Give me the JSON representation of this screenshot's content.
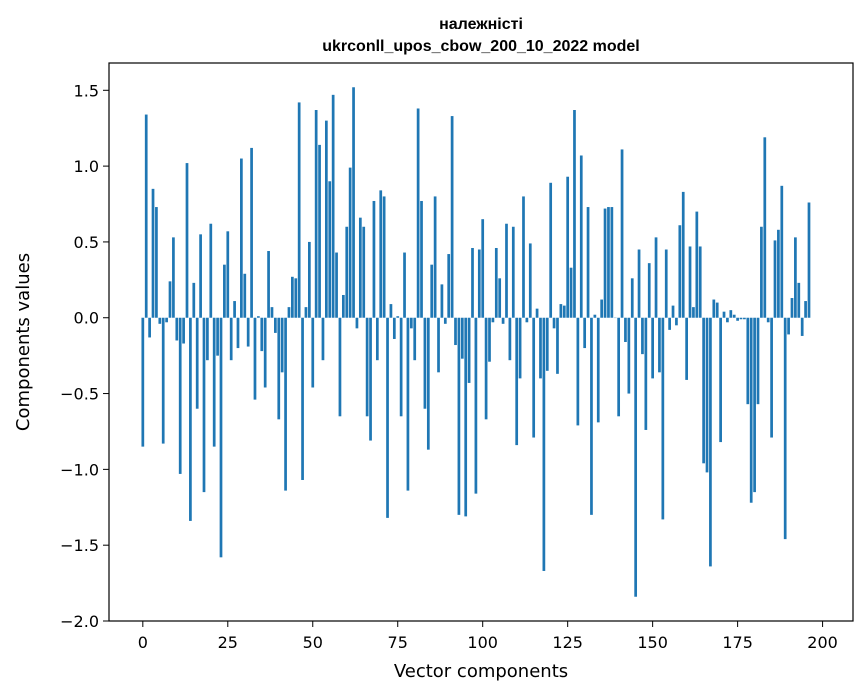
{
  "chart_data": {
    "type": "bar",
    "title": "належністі",
    "subtitle": "ukrconll_upos_cbow_200_10_2022 model",
    "xlabel": "Vector components",
    "ylabel": "Components values",
    "xlim": [
      -9.95,
      208.95
    ],
    "ylim": [
      -2.0,
      1.68
    ],
    "xticks": [
      0,
      25,
      50,
      75,
      100,
      125,
      150,
      175,
      200
    ],
    "yticks": [
      -2.0,
      -1.5,
      -1.0,
      -0.5,
      0.0,
      0.5,
      1.0,
      1.5
    ],
    "ytick_labels": [
      "−2.0",
      "−1.5",
      "−1.0",
      "−0.5",
      "0.0",
      "0.5",
      "1.0",
      "1.5"
    ],
    "grid": false,
    "bar_color": "#1f77b4",
    "values": [
      -0.85,
      1.34,
      -0.13,
      0.85,
      0.73,
      -0.04,
      -0.83,
      -0.03,
      0.24,
      0.53,
      -0.15,
      -1.03,
      -0.17,
      1.02,
      -1.34,
      0.23,
      -0.6,
      0.55,
      -1.15,
      -0.28,
      0.62,
      -0.85,
      -0.25,
      -1.58,
      0.35,
      0.57,
      -0.28,
      0.11,
      -0.2,
      1.05,
      0.29,
      -0.19,
      1.12,
      -0.54,
      0.01,
      -0.22,
      -0.46,
      0.44,
      0.07,
      -0.1,
      -0.67,
      -0.36,
      -1.14,
      0.07,
      0.27,
      0.26,
      1.42,
      -1.07,
      0.07,
      0.5,
      -0.46,
      1.37,
      1.14,
      -0.28,
      1.3,
      0.9,
      1.47,
      0.43,
      -0.65,
      0.15,
      0.6,
      0.99,
      1.52,
      -0.07,
      0.66,
      0.6,
      -0.65,
      -0.81,
      0.77,
      -0.28,
      0.84,
      0.8,
      -1.32,
      0.09,
      -0.14,
      0.01,
      -0.65,
      0.43,
      -1.14,
      -0.07,
      -0.28,
      1.38,
      0.77,
      -0.6,
      -0.87,
      0.35,
      0.8,
      -0.36,
      0.22,
      -0.04,
      0.42,
      1.33,
      -0.18,
      -1.3,
      -0.27,
      -1.31,
      -0.43,
      0.46,
      -1.16,
      0.45,
      0.65,
      -0.67,
      -0.29,
      -0.03,
      0.46,
      0.26,
      -0.04,
      0.62,
      -0.28,
      0.6,
      -0.84,
      -0.4,
      0.8,
      -0.03,
      0.49,
      -0.79,
      0.06,
      -0.4,
      -1.67,
      -0.35,
      0.89,
      -0.07,
      -0.37,
      0.09,
      0.08,
      0.93,
      0.33,
      1.37,
      -0.71,
      1.07,
      -0.2,
      0.73,
      -1.3,
      0.02,
      -0.69,
      0.12,
      0.72,
      0.73,
      0.73,
      0.0,
      -0.65,
      1.11,
      -0.16,
      -0.5,
      0.26,
      -1.84,
      0.45,
      -0.24,
      -0.74,
      0.36,
      -0.4,
      0.53,
      -0.36,
      -1.33,
      0.45,
      -0.08,
      0.08,
      -0.05,
      0.61,
      0.83,
      -0.41,
      0.47,
      0.07,
      0.7,
      0.47,
      -0.96,
      -1.02,
      -1.64,
      0.12,
      0.1,
      -0.82,
      0.04,
      -0.03,
      0.05,
      0.02,
      -0.02,
      -0.01,
      -0.01,
      -0.57,
      -1.22,
      -1.15,
      -0.57,
      0.6,
      1.19,
      -0.03,
      -0.79,
      0.51,
      0.58,
      0.87,
      -1.46,
      -0.11,
      0.13,
      0.53,
      0.23,
      -0.12,
      0.11,
      0.76
    ]
  }
}
